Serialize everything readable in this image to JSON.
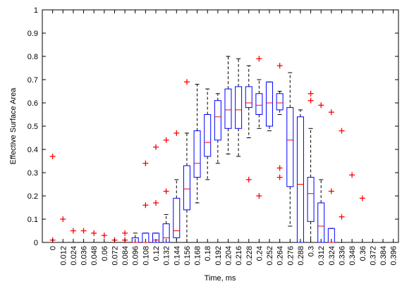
{
  "chart_data": {
    "type": "boxplot",
    "title": "",
    "xlabel": "Time, ms",
    "ylabel": "Effective Surface Area",
    "ylim": [
      0,
      1
    ],
    "yticks": [
      "0",
      "0.1",
      "0.2",
      "0.3",
      "0.4",
      "0.5",
      "0.6",
      "0.7",
      "0.8",
      "0.9",
      "1"
    ],
    "categories": [
      "0",
      "0.012",
      "0.024",
      "0.036",
      "0.048",
      "0.06",
      "0.072",
      "0.084",
      "0.096",
      "0.108",
      "0.12",
      "0.132",
      "0.144",
      "0.156",
      "0.168",
      "0.18",
      "0.192",
      "0.204",
      "0.216",
      "0.228",
      "0.24",
      "0.252",
      "0.264",
      "0.276",
      "0.288",
      "0.3",
      "0.312",
      "0.324",
      "0.336",
      "0.348",
      "0.36",
      "0.372",
      "0.384",
      "0.396"
    ],
    "grid": false,
    "colors": {
      "box": "#0000ff",
      "median": "#ff0000",
      "whisker": "#000000",
      "outlier": "#ff0000",
      "axis": "#000000"
    },
    "boxes": [
      {
        "x": "0.096",
        "lw": 0.0,
        "q1": 0.0,
        "med": 0.0,
        "q3": 0.02,
        "uw": 0.04
      },
      {
        "x": "0.108",
        "lw": 0.0,
        "q1": 0.0,
        "med": 0.0,
        "q3": 0.04,
        "uw": 0.04
      },
      {
        "x": "0.12",
        "lw": 0.0,
        "q1": 0.0,
        "med": 0.01,
        "q3": 0.04,
        "uw": 0.04
      },
      {
        "x": "0.132",
        "lw": 0.0,
        "q1": 0.0,
        "med": 0.02,
        "q3": 0.08,
        "uw": 0.12
      },
      {
        "x": "0.144",
        "lw": 0.0,
        "q1": 0.02,
        "med": 0.05,
        "q3": 0.19,
        "uw": 0.27
      },
      {
        "x": "0.156",
        "lw": 0.0,
        "q1": 0.14,
        "med": 0.23,
        "q3": 0.33,
        "uw": 0.47
      },
      {
        "x": "0.168",
        "lw": 0.17,
        "q1": 0.28,
        "med": 0.34,
        "q3": 0.48,
        "uw": 0.68
      },
      {
        "x": "0.18",
        "lw": 0.27,
        "q1": 0.37,
        "med": 0.43,
        "q3": 0.55,
        "uw": 0.66
      },
      {
        "x": "0.192",
        "lw": 0.34,
        "q1": 0.44,
        "med": 0.54,
        "q3": 0.61,
        "uw": 0.64
      },
      {
        "x": "0.204",
        "lw": 0.38,
        "q1": 0.49,
        "med": 0.57,
        "q3": 0.66,
        "uw": 0.8
      },
      {
        "x": "0.216",
        "lw": 0.37,
        "q1": 0.49,
        "med": 0.57,
        "q3": 0.67,
        "uw": 0.79
      },
      {
        "x": "0.228",
        "lw": 0.45,
        "q1": 0.58,
        "med": 0.6,
        "q3": 0.67,
        "uw": 0.76
      },
      {
        "x": "0.24",
        "lw": 0.49,
        "q1": 0.55,
        "med": 0.59,
        "q3": 0.64,
        "uw": 0.7
      },
      {
        "x": "0.252",
        "lw": 0.48,
        "q1": 0.5,
        "med": 0.6,
        "q3": 0.69,
        "uw": 0.69
      },
      {
        "x": "0.264",
        "lw": 0.55,
        "q1": 0.57,
        "med": 0.6,
        "q3": 0.64,
        "uw": 0.65
      },
      {
        "x": "0.276",
        "lw": 0.07,
        "q1": 0.24,
        "med": 0.44,
        "q3": 0.58,
        "uw": 0.73
      },
      {
        "x": "0.288",
        "lw": 0.0,
        "q1": 0.0,
        "med": 0.25,
        "q3": 0.54,
        "uw": 0.57
      },
      {
        "x": "0.3",
        "lw": 0.0,
        "q1": 0.09,
        "med": 0.21,
        "q3": 0.28,
        "uw": 0.49
      },
      {
        "x": "0.312",
        "lw": 0.0,
        "q1": 0.0,
        "med": 0.07,
        "q3": 0.17,
        "uw": 0.27
      },
      {
        "x": "0.324",
        "lw": 0.0,
        "q1": 0.0,
        "med": 0.0,
        "q3": 0.06,
        "uw": 0.06
      }
    ],
    "outliers": [
      {
        "x": "0",
        "y": 0.37
      },
      {
        "x": "0",
        "y": 0.01
      },
      {
        "x": "0.012",
        "y": 0.1
      },
      {
        "x": "0.024",
        "y": 0.05
      },
      {
        "x": "0.036",
        "y": 0.05
      },
      {
        "x": "0.048",
        "y": 0.04
      },
      {
        "x": "0.06",
        "y": 0.03
      },
      {
        "x": "0.072",
        "y": 0.01
      },
      {
        "x": "0.084",
        "y": 0.04
      },
      {
        "x": "0.084",
        "y": 0.01
      },
      {
        "x": "0.108",
        "y": 0.34
      },
      {
        "x": "0.108",
        "y": 0.16
      },
      {
        "x": "0.12",
        "y": 0.41
      },
      {
        "x": "0.12",
        "y": 0.17
      },
      {
        "x": "0.132",
        "y": 0.44
      },
      {
        "x": "0.132",
        "y": 0.22
      },
      {
        "x": "0.144",
        "y": 0.47
      },
      {
        "x": "0.156",
        "y": 0.69
      },
      {
        "x": "0.228",
        "y": 0.27
      },
      {
        "x": "0.24",
        "y": 0.79
      },
      {
        "x": "0.24",
        "y": 0.2
      },
      {
        "x": "0.264",
        "y": 0.76
      },
      {
        "x": "0.264",
        "y": 0.32
      },
      {
        "x": "0.264",
        "y": 0.28
      },
      {
        "x": "0.3",
        "y": 0.64
      },
      {
        "x": "0.3",
        "y": 0.61
      },
      {
        "x": "0.312",
        "y": 0.59
      },
      {
        "x": "0.324",
        "y": 0.56
      },
      {
        "x": "0.324",
        "y": 0.22
      },
      {
        "x": "0.336",
        "y": 0.48
      },
      {
        "x": "0.336",
        "y": 0.11
      },
      {
        "x": "0.348",
        "y": 0.29
      },
      {
        "x": "0.36",
        "y": 0.19
      }
    ]
  }
}
